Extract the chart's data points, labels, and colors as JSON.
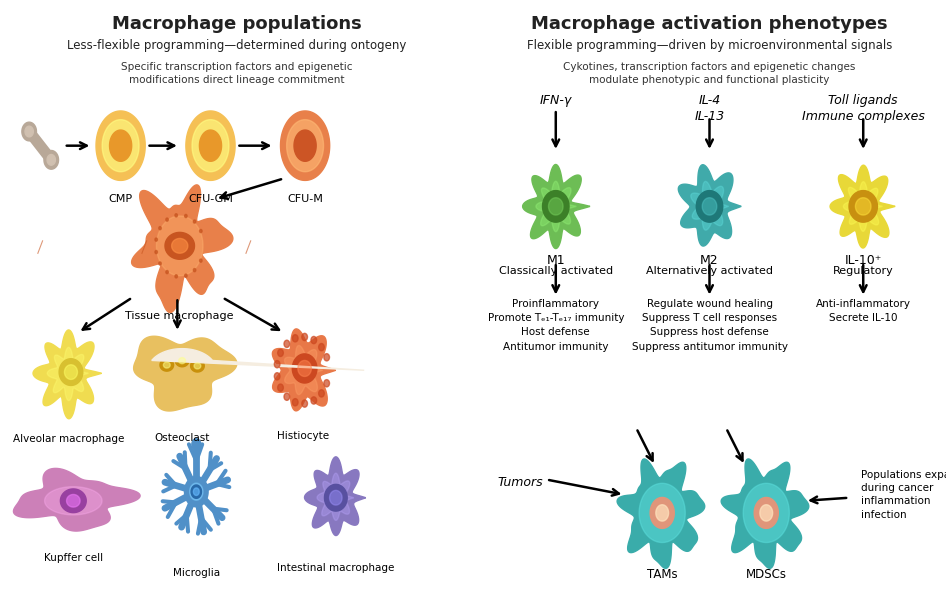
{
  "left_bg": "#f5ede0",
  "right_bg": "#daeef8",
  "left_title": "Macrophage populations",
  "left_subtitle": "Less-flexible programming—determined during ontogeny",
  "left_desc": "Specific transcription factors and epigenetic\nmodifications direct lineage commitment",
  "right_title": "Macrophage activation phenotypes",
  "right_subtitle": "Flexible programming—driven by microenvironmental signals",
  "right_desc": "Cykotines, transcription factors and epigenetic changes\nmodulate phenotypic and functional plasticity",
  "ifn_label": "IFN-γ",
  "il4_label": "IL-4\nIL-13",
  "toll_label": "Toll ligands\nImmune complexes",
  "m1_label": "M1",
  "m1_sub": "Classically activated",
  "m2_label": "M2",
  "m2_sub": "Alternatively activated",
  "il10_label": "IL-10⁺",
  "il10_sub": "Regulatory",
  "m1_func": "Proinflammatory\nPromote Tₑ₁-Tₑ₁₇ immunity\nHost defense\nAntitumor immunity",
  "m2_func": "Regulate wound healing\nSuppress T cell responses\nSuppress host defense\nSuppress antitumor immunity",
  "il10_func": "Anti-inflammatory\nSecrete IL-10",
  "tumors_label": "Tumors",
  "tams_label": "TAMs",
  "mdscs_label": "MDSCs",
  "pop_expand": "Populations expand\nduring cancer\ninflammation\ninfection"
}
